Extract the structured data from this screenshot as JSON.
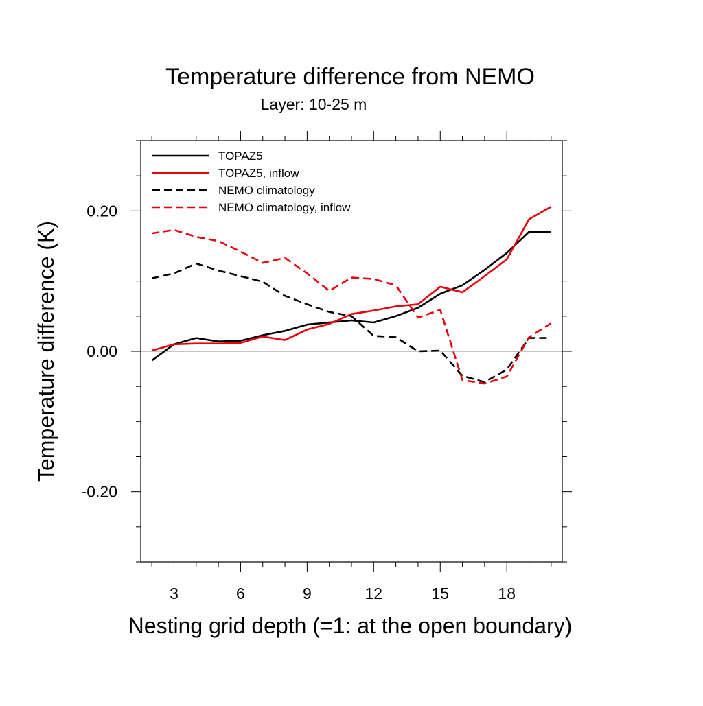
{
  "chart_data": {
    "type": "line",
    "title": "Temperature difference from NEMO",
    "subtitle": "Layer: 10-25 m",
    "xlabel": "Nesting grid depth (=1: at the open boundary)",
    "ylabel": "Temperature difference (K)",
    "xlim": [
      1.5,
      20.5
    ],
    "ylim": [
      -0.3,
      0.3
    ],
    "xticks": [
      3,
      6,
      9,
      12,
      15,
      18
    ],
    "xtick_labels": [
      "3",
      "6",
      "9",
      "12",
      "15",
      "18"
    ],
    "yticks": [
      -0.2,
      0.0,
      0.2
    ],
    "ytick_labels": [
      "-0.20",
      "0.00",
      "0.20"
    ],
    "zero_line": true,
    "legend_position": "top-left",
    "x": [
      2,
      3,
      4,
      5,
      6,
      7,
      8,
      9,
      10,
      11,
      12,
      13,
      14,
      15,
      16,
      17,
      18,
      19,
      20
    ],
    "series": [
      {
        "name": "TOPAZ5",
        "color": "#000000",
        "dash": "solid",
        "values": [
          -0.013,
          0.01,
          0.019,
          0.014,
          0.015,
          0.023,
          0.029,
          0.038,
          0.041,
          0.044,
          0.041,
          0.05,
          0.062,
          0.082,
          0.094,
          0.116,
          0.14,
          0.17,
          0.17
        ]
      },
      {
        "name": "TOPAZ5, inflow",
        "color": "#e8000b",
        "dash": "solid",
        "values": [
          0.001,
          0.01,
          0.011,
          0.011,
          0.012,
          0.021,
          0.016,
          0.031,
          0.039,
          0.053,
          0.058,
          0.064,
          0.067,
          0.092,
          0.084,
          0.107,
          0.131,
          0.188,
          0.206
        ]
      },
      {
        "name": "NEMO climatology",
        "color": "#000000",
        "dash": "dashed",
        "values": [
          0.104,
          0.111,
          0.125,
          0.115,
          0.107,
          0.099,
          0.079,
          0.067,
          0.056,
          0.05,
          0.022,
          0.02,
          0.0,
          0.001,
          -0.035,
          -0.044,
          -0.026,
          0.019,
          0.019
        ]
      },
      {
        "name": "NEMO climatology, inflow",
        "color": "#e8000b",
        "dash": "dashed",
        "values": [
          0.168,
          0.173,
          0.163,
          0.157,
          0.142,
          0.126,
          0.133,
          0.111,
          0.086,
          0.105,
          0.103,
          0.094,
          0.048,
          0.059,
          -0.041,
          -0.046,
          -0.036,
          0.02,
          0.04
        ]
      }
    ]
  }
}
